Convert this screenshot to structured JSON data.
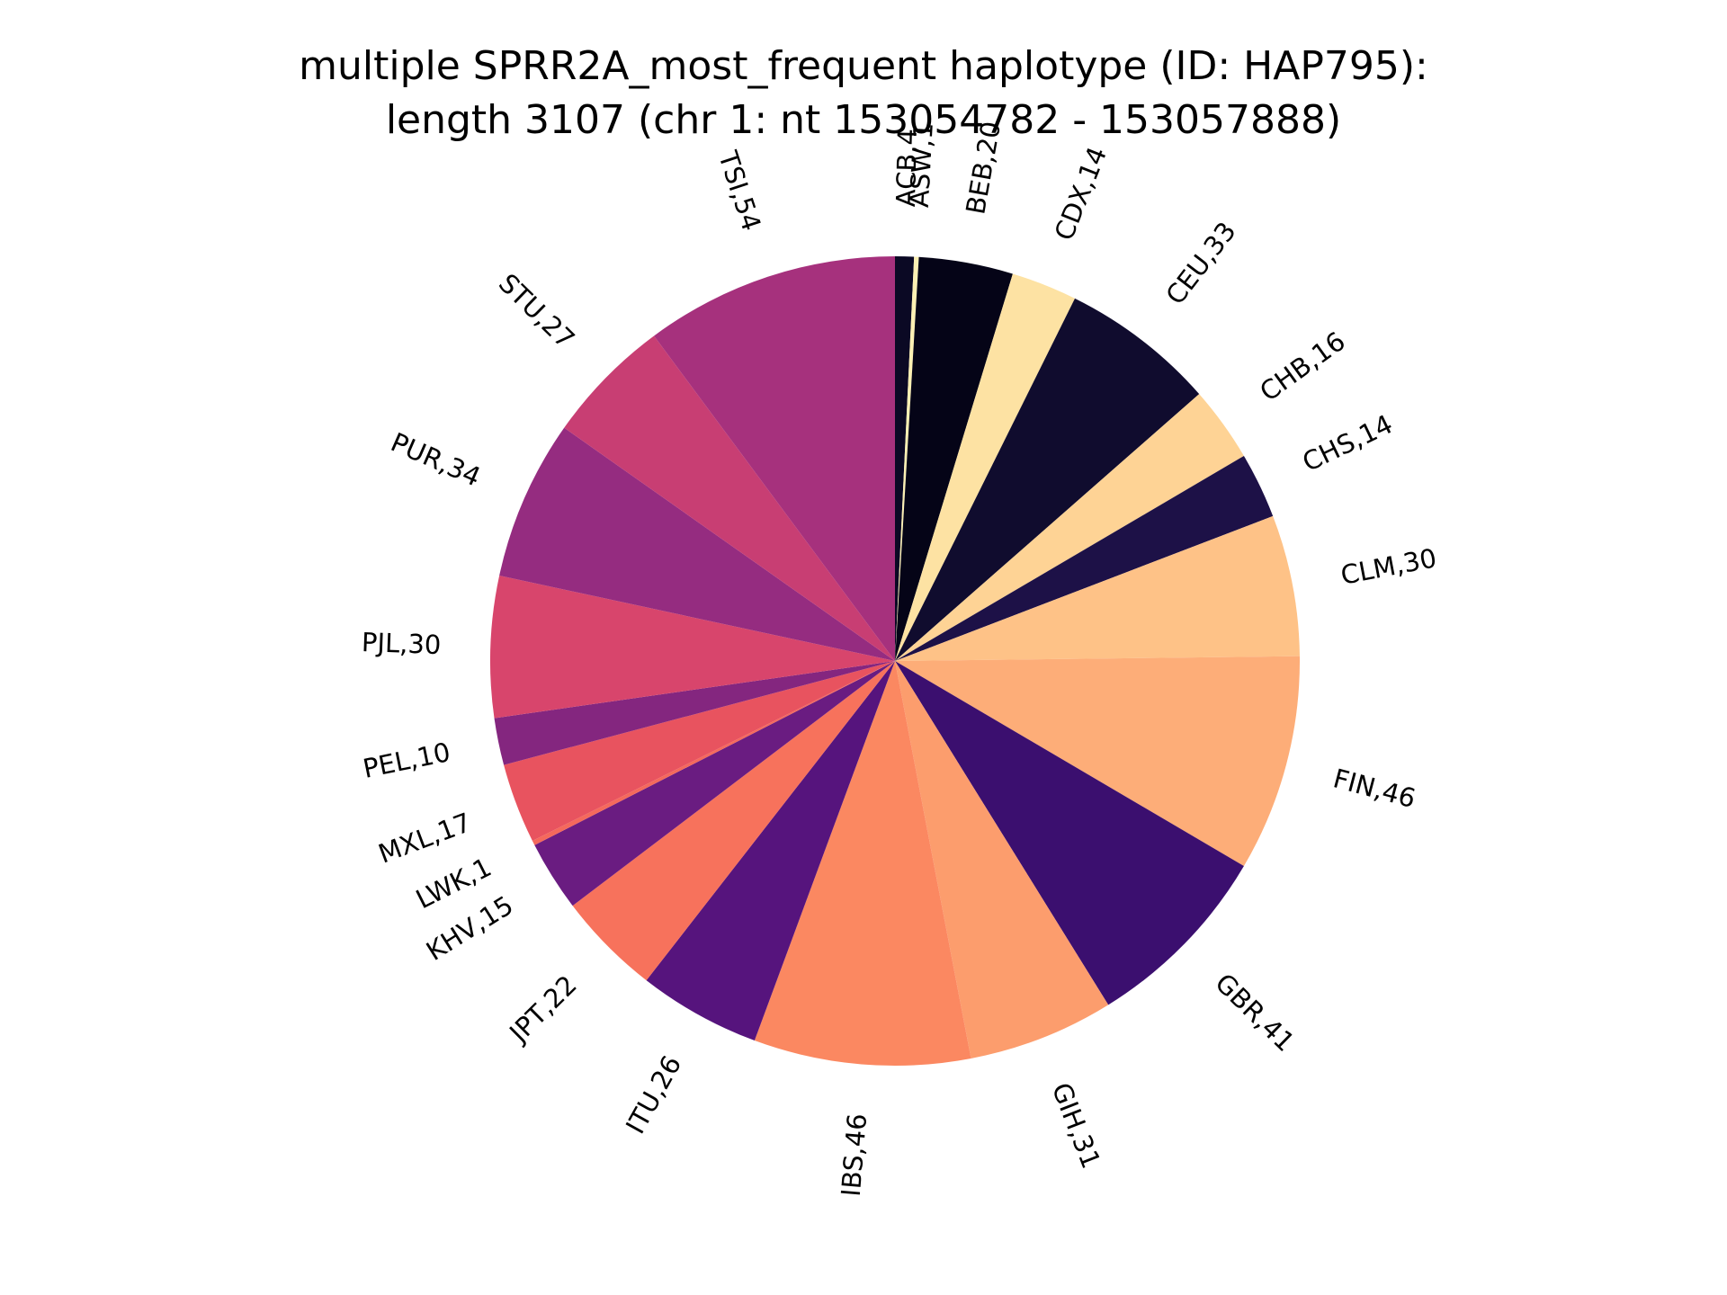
{
  "chart_data": {
    "type": "pie",
    "title_lines": [
      "multiple SPRR2A_most_frequent haplotype (ID: HAP795):",
      "length 3107 (chr 1: nt 153054782 - 153057888)"
    ],
    "start_angle_deg": 90,
    "direction": "clockwise",
    "label_rotation": "radial",
    "slices": [
      {
        "label": "ACB,4",
        "category": "ACB",
        "value": 4,
        "color": "#0b0924"
      },
      {
        "label": "ASW,1",
        "category": "ASW",
        "value": 1,
        "color": "#fcf0b3"
      },
      {
        "label": "BEB,20",
        "category": "BEB",
        "value": 20,
        "color": "#050417"
      },
      {
        "label": "CDX,14",
        "category": "CDX",
        "value": 14,
        "color": "#fde2a3"
      },
      {
        "label": "CEU,33",
        "category": "CEU",
        "value": 33,
        "color": "#100c2e"
      },
      {
        "label": "CHB,16",
        "category": "CHB",
        "value": 16,
        "color": "#fed395"
      },
      {
        "label": "CHS,14",
        "category": "CHS",
        "value": 14,
        "color": "#1d1147"
      },
      {
        "label": "CLM,30",
        "category": "CLM",
        "value": 30,
        "color": "#fec287"
      },
      {
        "label": "FIN,46",
        "category": "FIN",
        "value": 46,
        "color": "#fdad78"
      },
      {
        "label": "GBR,41",
        "category": "GBR",
        "value": 41,
        "color": "#3b0f6f"
      },
      {
        "label": "GIH,31",
        "category": "GIH",
        "value": 31,
        "color": "#fc9d6d"
      },
      {
        "label": "IBS,46",
        "category": "IBS",
        "value": 46,
        "color": "#fb8861"
      },
      {
        "label": "ITU,26",
        "category": "ITU",
        "value": 26,
        "color": "#56147d"
      },
      {
        "label": "JPT,22",
        "category": "JPT",
        "value": 22,
        "color": "#f7725c"
      },
      {
        "label": "KHV,15",
        "category": "KHV",
        "value": 15,
        "color": "#6a1c81"
      },
      {
        "label": "LWK,1",
        "category": "LWK",
        "value": 1,
        "color": "#f4695c"
      },
      {
        "label": "MXL,17",
        "category": "MXL",
        "value": 17,
        "color": "#e8535f"
      },
      {
        "label": "PEL,10",
        "category": "PEL",
        "value": 10,
        "color": "#84267f"
      },
      {
        "label": "PJL,30",
        "category": "PJL",
        "value": 30,
        "color": "#d8456c"
      },
      {
        "label": "PUR,34",
        "category": "PUR",
        "value": 34,
        "color": "#952c80"
      },
      {
        "label": "STU,27",
        "category": "STU",
        "value": 27,
        "color": "#c83e73"
      },
      {
        "label": "TSI,54",
        "category": "TSI",
        "value": 54,
        "color": "#a6317d"
      }
    ]
  }
}
